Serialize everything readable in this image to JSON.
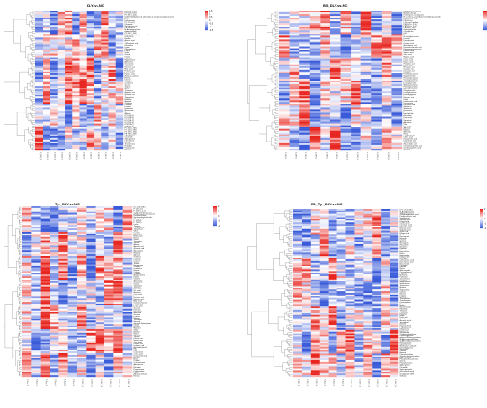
{
  "figure": {
    "panels": [
      {
        "title": "DLY.vs.NC",
        "colorbar": {
          "ticks": [
            "1.5",
            "1",
            "0.5",
            "0",
            "-0.5",
            "-1",
            "-1.5"
          ]
        },
        "rows": 78,
        "cols": 12,
        "row_labels": [
          "LPC (17:1) IB.5",
          "LPC (22:5) R87",
          "PC (18:1_22:6)",
          "6-(6-methylheptyl-2,3-dideoxyhex-2-enopyranosyl) benzoate",
          "Ile-Ile",
          "Delta-hexose",
          "PC (4:1-6:1)",
          "Oleamide",
          "Stearidonic acid",
          "PE (16:0/0:0)",
          "N-Acetyltryptophan",
          "Hydrocortisone",
          "PC (18:2_20:4)",
          "3-(Methylthio) propionic acid",
          "LPE (22:6)",
          "Emodin",
          "Azelaic acid",
          "Ergosterol",
          "Chlorogenic acid",
          "Glutamine",
          "Lysine",
          "Phenylalanine",
          "Proline",
          "Valine",
          "Uridine",
          "Inosine",
          "Xanthine",
          "Hypoxanthine",
          "Adenosine",
          "Guanosine",
          "Citric acid",
          "Succinic acid",
          "Malic acid",
          "Fumaric acid",
          "Lactic acid",
          "Pyruvic acid",
          "Acetyl-L-carnitine",
          "Betaine",
          "Choline",
          "Creatine",
          "Creatinine",
          "Taurine",
          "Glycine",
          "Serine",
          "Threonine",
          "Aspartic acid",
          "Glutamic acid",
          "Tyrosine",
          "Tryptophan",
          "Histidine",
          "Arginine",
          "Ornithine",
          "Citrulline",
          "Leucine",
          "Isoleucine",
          "Methionine",
          "Cysteine",
          "Alanine",
          "LPC (16:0)",
          "LPC (18:0)",
          "LPC (18:1)",
          "LPC (18:2)",
          "LPC (20:4)",
          "LPE (18:0)",
          "LPE (20:4)",
          "PC (16:0_18:1)",
          "PC (16:0_18:2)",
          "PC (18:0_20:4)",
          "PE (18:0_20:4)",
          "Sphingosine",
          "Ceramide",
          "Sphinganine",
          "Cholesterol",
          "Cortisol",
          "Testosterone",
          "Estradiol",
          "Progesterone",
          "Glucose"
        ],
        "col_labels": [
          "C_DLY_1",
          "C_DLY_2",
          "C_DLY_3",
          "C_DLY_4",
          "C_DLY_5",
          "C_DLY_6",
          "C_NC_1",
          "C_NC_2",
          "C_NC_3",
          "C_NC_4",
          "C_NC_5",
          "C_NC_6"
        ]
      },
      {
        "title": "BS_DLY.vs.NC",
        "colorbar": {
          "ticks": [
            "1.5",
            "1",
            "0.5",
            "0",
            "-0.5",
            "-1",
            "-1.5"
          ]
        },
        "rows": 78,
        "cols": 12,
        "row_labels": [
          "DM-Hydroxyglutarate",
          "Methylcarbamyl",
          "Fosfomycin-monohydrate",
          "N-(2-amino-2-oxoethyl)-2-methylpropanamide",
          "Dodecanoic acid",
          "PE (16:1e)",
          "L-Leucyl-L-proline",
          "PE (20:1e_22:6)",
          "PE (16:1e_22:6)",
          "PE (18:0_18:1)",
          "Geranylacetone",
          "Chimaphilin",
          "DPA",
          "Ptelatoside",
          "N-Acetylputrescine",
          "Leucine",
          "Pantothenate",
          "Spermidine",
          "Linoleic acid",
          "Arachidonic acid",
          "Docosahexaenoic acid",
          "Eicosapentaenoic acid",
          "Palmitic acid",
          "Stearic acid",
          "Oleic acid",
          "Myristic acid",
          "Lauric acid",
          "Capric acid",
          "Butyric acid",
          "Propionic acid",
          "Acetic acid",
          "Hexanoic acid",
          "Octanoic acid",
          "Decanoic acid",
          "Carnitine",
          "Propionylcarnitine",
          "Butyrylcarnitine",
          "Hexanoylcarnitine",
          "Octanoylcarnitine",
          "Decanoylcarnitine",
          "Lauroylcarnitine",
          "Myristoylcarnitine",
          "Palmitoylcarnitine",
          "Stearoylcarnitine",
          "Oleoylcarnitine",
          "Linoleylcarnitine",
          "Dimethylglycine",
          "Sarcosine",
          "Hippuric acid",
          "Indole",
          "Indoleacetic acid",
          "Kynurenine",
          "Kynurenic acid",
          "Serotonin",
          "Melatonin",
          "Dopamine",
          "Norepinephrine",
          "Epinephrine",
          "Histamine",
          "Putrescine",
          "Cadaverine",
          "Spermine",
          "Agmatine",
          "Urea",
          "Uric acid",
          "Allantoin",
          "Bilirubin",
          "Biliverdin",
          "Heme",
          "Protoporphyrin",
          "Cholic acid",
          "Deoxycholic acid",
          "Lithocholic acid",
          "Taurocholic acid",
          "Glycocholic acid",
          "Chenodeoxycholic acid",
          "Ursodeoxycholic acid",
          "Glycerol"
        ],
        "col_labels": [
          "C_BS_1",
          "C_BS_2",
          "C_BS_3",
          "C_BS_4",
          "C_BS_5",
          "C_BS_6",
          "C_DLY_1",
          "C_DLY_2",
          "C_DLY_3",
          "C_DLY_4",
          "C_DLY_5",
          "C_DLY_6"
        ]
      },
      {
        "title": "Tyr_DLY.vs.NC",
        "colorbar": {
          "ticks": [
            "2",
            "1",
            "0",
            "-1",
            "-2"
          ]
        },
        "rows": 100,
        "cols": 12,
        "row_labels": [
          "LPC (16:0) IB.5",
          "PC (4:1-6:1)",
          "PC (18:1_18:2)",
          "3-Hydroxymyristic acid",
          "4-Hydroxy-2-butenoic acid",
          "Phosphocholine",
          "Glycerophosphocholine",
          "Sphingomyelin",
          "PE (20:4)",
          "PE (18:2)",
          "Lysine",
          "Tyrosine",
          "Phenylalanine",
          "Tryptophan",
          "Valine",
          "Leucine",
          "Isoleucine",
          "Methionine",
          "Proline",
          "Serine",
          "Threonine",
          "Glycine",
          "Alanine",
          "Aspartic acid",
          "Glutamic acid",
          "Glutamine",
          "Asparagine",
          "Histidine",
          "Arginine",
          "Ornithine",
          "Citrulline",
          "Cysteine",
          "Cystine",
          "Taurine",
          "Hypotaurine",
          "Creatine",
          "Creatinine",
          "Betaine",
          "Choline",
          "Carnitine",
          "Acetylcarnitine",
          "Uridine",
          "Cytidine",
          "Adenosine",
          "Guanosine",
          "Inosine",
          "Thymidine",
          "Xanthine",
          "Hypoxanthine",
          "Uric acid",
          "Allantoin",
          "Citric acid",
          "Isocitric acid",
          "Succinic acid",
          "Fumaric acid",
          "Malic acid",
          "Oxaloacetic acid",
          "Pyruvic acid",
          "Lactic acid",
          "Glucose",
          "Fructose",
          "Galactose",
          "Mannose",
          "Sucrose",
          "Lactose",
          "Maltose",
          "Trehalose",
          "Glycerol",
          "Glycerol-3-phosphate",
          "Inositol",
          "Sorbitol",
          "Mannitol",
          "Xylitol",
          "Arabitol",
          "Ribitol",
          "Erythritol",
          "Threitol",
          "Palmitic acid",
          "Stearic acid",
          "Oleic acid",
          "Linoleic acid",
          "Linolenic acid",
          "Arachidonic acid",
          "EPA",
          "DHA",
          "Cholesterol",
          "Cholic acid",
          "Deoxycholic acid",
          "Bilirubin",
          "Heme",
          "Cortisol",
          "Corticosterone",
          "Aldosterone",
          "Testosterone",
          "Estradiol",
          "Progesterone",
          "Pregnenolone",
          "DHEA",
          "Androstenedione",
          "Estrone"
        ],
        "col_labels": [
          "C_Tyr_1",
          "C_Tyr_2",
          "C_Tyr_3",
          "C_Tyr_4",
          "C_Tyr_5",
          "C_Tyr_6",
          "C_DLY_1",
          "C_DLY_2",
          "C_DLY_3",
          "C_DLY_4",
          "C_DLY_5",
          "C_DLY_6"
        ]
      },
      {
        "title": "BS_Tyr_DLY.vs.NC",
        "colorbar": {
          "ticks": [
            "2",
            "1",
            "0",
            "-1",
            "-2"
          ]
        },
        "rows": 100,
        "cols": 12,
        "row_labels": [
          "LPC (16:0) IB.5",
          "N-Acetylhistamine",
          "3-Methylhistidine",
          "4-Hydroxybenzoic acid",
          "Protocatechuic acid",
          "Vanillic acid",
          "Syringic acid",
          "Ferulic acid",
          "Caffeic acid",
          "Coumaric acid",
          "Cinnamic acid",
          "Benzoic acid",
          "Salicylic acid",
          "Gallic acid",
          "Ellagic acid",
          "Quercetin",
          "Kaempferol",
          "Myricetin",
          "Luteolin",
          "Apigenin",
          "Naringenin",
          "Hesperetin",
          "Genistein",
          "Daidzein",
          "Catechin",
          "Epicatechin",
          "Rutin",
          "Hyperoside",
          "Isoquercitrin",
          "Astragalin",
          "Chlorogenic acid",
          "Rosmarinic acid",
          "Resveratrol",
          "Curcumin",
          "Emodin",
          "Rhein",
          "Aloe-emodin",
          "Chrysophanol",
          "Physcion",
          "Berberine",
          "Palmatine",
          "Jatrorrhizine",
          "Coptisine",
          "Magnoflorine",
          "Sinomenine",
          "Tetrandrine",
          "Matrine",
          "Oxymatrine",
          "Sophoridine",
          "Cytisine",
          "Nicotine",
          "Cotinine",
          "Caffeine",
          "Theophylline",
          "Theobromine",
          "Paraxanthine",
          "Trigonelline",
          "Niacin",
          "Nicotinamide",
          "Riboflavin",
          "Thiamine",
          "Pyridoxine",
          "Pyridoxal",
          "Biotin",
          "Folic acid",
          "Cobalamin",
          "Ascorbic acid",
          "Tocopherol",
          "Retinol",
          "Ergocalciferol",
          "Phylloquinone",
          "Ubiquinone",
          "Lipoic acid",
          "Glutathione",
          "Oxidized glutathione",
          "Cysteinylglycine",
          "gamma-Glutamylcysteine",
          "S-Adenosylmethionine",
          "S-Adenosylhomocysteine",
          "Homocysteine",
          "Cystathionine",
          "Methionine sulfoxide",
          "Dimethylglycine",
          "Sarcosine",
          "Choline",
          "Betaine",
          "Phosphocholine",
          "Glycerophosphocholine",
          "Ethanolamine",
          "Phosphoethanolamine",
          "Serine",
          "Phosphoserine",
          "Sphingosine",
          "Sphinganine",
          "Ceramide",
          "Sphingomyelin",
          "Glucosylceramide",
          "Lactosylceramide",
          "Ganglioside GM3",
          "Sulfatide"
        ],
        "col_labels": [
          "C_BS_1",
          "C_BS_2",
          "C_BS_3",
          "C_Tyr_1",
          "C_Tyr_2",
          "C_Tyr_3",
          "C_DLY_1",
          "C_DLY_2",
          "C_DLY_3",
          "C_DLY_4",
          "C_DLY_5",
          "C_DLY_6"
        ]
      }
    ]
  },
  "chart_data": [
    {
      "type": "heatmap",
      "title": "DLY.vs.NC",
      "color_scale": {
        "low": "#3a5bd9",
        "mid": "#ffffff",
        "high": "#e8251f",
        "range": [
          -1.5,
          1.5
        ]
      },
      "n_rows": 78,
      "n_cols": 12,
      "row_dendrogram": true,
      "col_dendrogram": false,
      "legend_position": "top-right",
      "seed": 11
    },
    {
      "type": "heatmap",
      "title": "BS_DLY.vs.NC",
      "color_scale": {
        "low": "#3a5bd9",
        "mid": "#ffffff",
        "high": "#e8251f",
        "range": [
          -1.5,
          1.5
        ]
      },
      "n_rows": 78,
      "n_cols": 12,
      "row_dendrogram": true,
      "col_dendrogram": false,
      "legend_position": "top-right",
      "seed": 23
    },
    {
      "type": "heatmap",
      "title": "Tyr_DLY.vs.NC",
      "color_scale": {
        "low": "#3a5bd9",
        "mid": "#ffffff",
        "high": "#e8251f",
        "range": [
          -2,
          2
        ]
      },
      "n_rows": 100,
      "n_cols": 12,
      "row_dendrogram": true,
      "col_dendrogram": false,
      "legend_position": "top-right",
      "seed": 37
    },
    {
      "type": "heatmap",
      "title": "BS_Tyr_DLY.vs.NC",
      "color_scale": {
        "low": "#3a5bd9",
        "mid": "#ffffff",
        "high": "#e8251f",
        "range": [
          -2,
          2
        ]
      },
      "n_rows": 100,
      "n_cols": 12,
      "row_dendrogram": true,
      "col_dendrogram": false,
      "legend_position": "top-right",
      "seed": 53
    }
  ]
}
